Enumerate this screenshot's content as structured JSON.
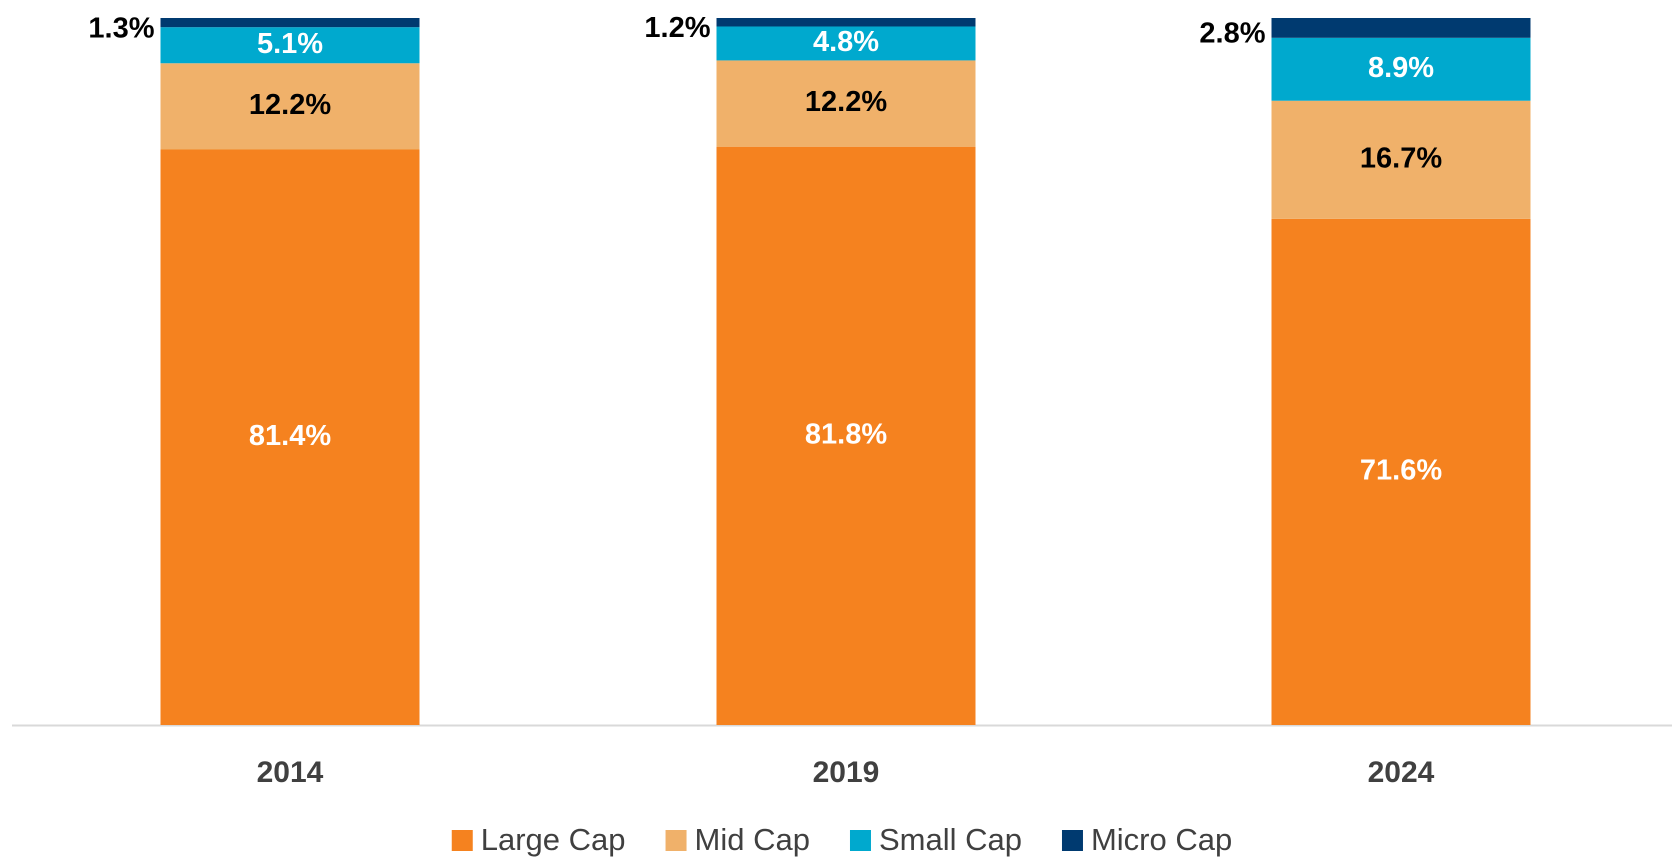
{
  "chart_data": {
    "type": "stacked_bar",
    "categories": [
      "2014",
      "2019",
      "2024"
    ],
    "ylim": [
      0,
      100
    ],
    "legend": "bottom",
    "series": [
      {
        "name": "Large Cap",
        "color": "#f5821f",
        "label_color": "#ffffff",
        "values": [
          81.4,
          81.8,
          71.6
        ],
        "value_labels": [
          "81.4%",
          "81.8%",
          "71.6%"
        ]
      },
      {
        "name": "Mid Cap",
        "color": "#f0b16a",
        "label_color": "#000000",
        "values": [
          12.2,
          12.2,
          16.7
        ],
        "value_labels": [
          "12.2%",
          "12.2%",
          "16.7%"
        ]
      },
      {
        "name": "Small Cap",
        "color": "#00a9ce",
        "label_color": "#ffffff",
        "values": [
          5.1,
          4.8,
          8.9
        ],
        "value_labels": [
          "5.1%",
          "4.8%",
          "8.9%"
        ]
      },
      {
        "name": "Micro Cap",
        "color": "#003a70",
        "label_color": "#000000",
        "values": [
          1.3,
          1.2,
          2.8
        ],
        "value_labels": [
          "1.3%",
          "1.2%",
          "2.8%"
        ]
      }
    ]
  }
}
